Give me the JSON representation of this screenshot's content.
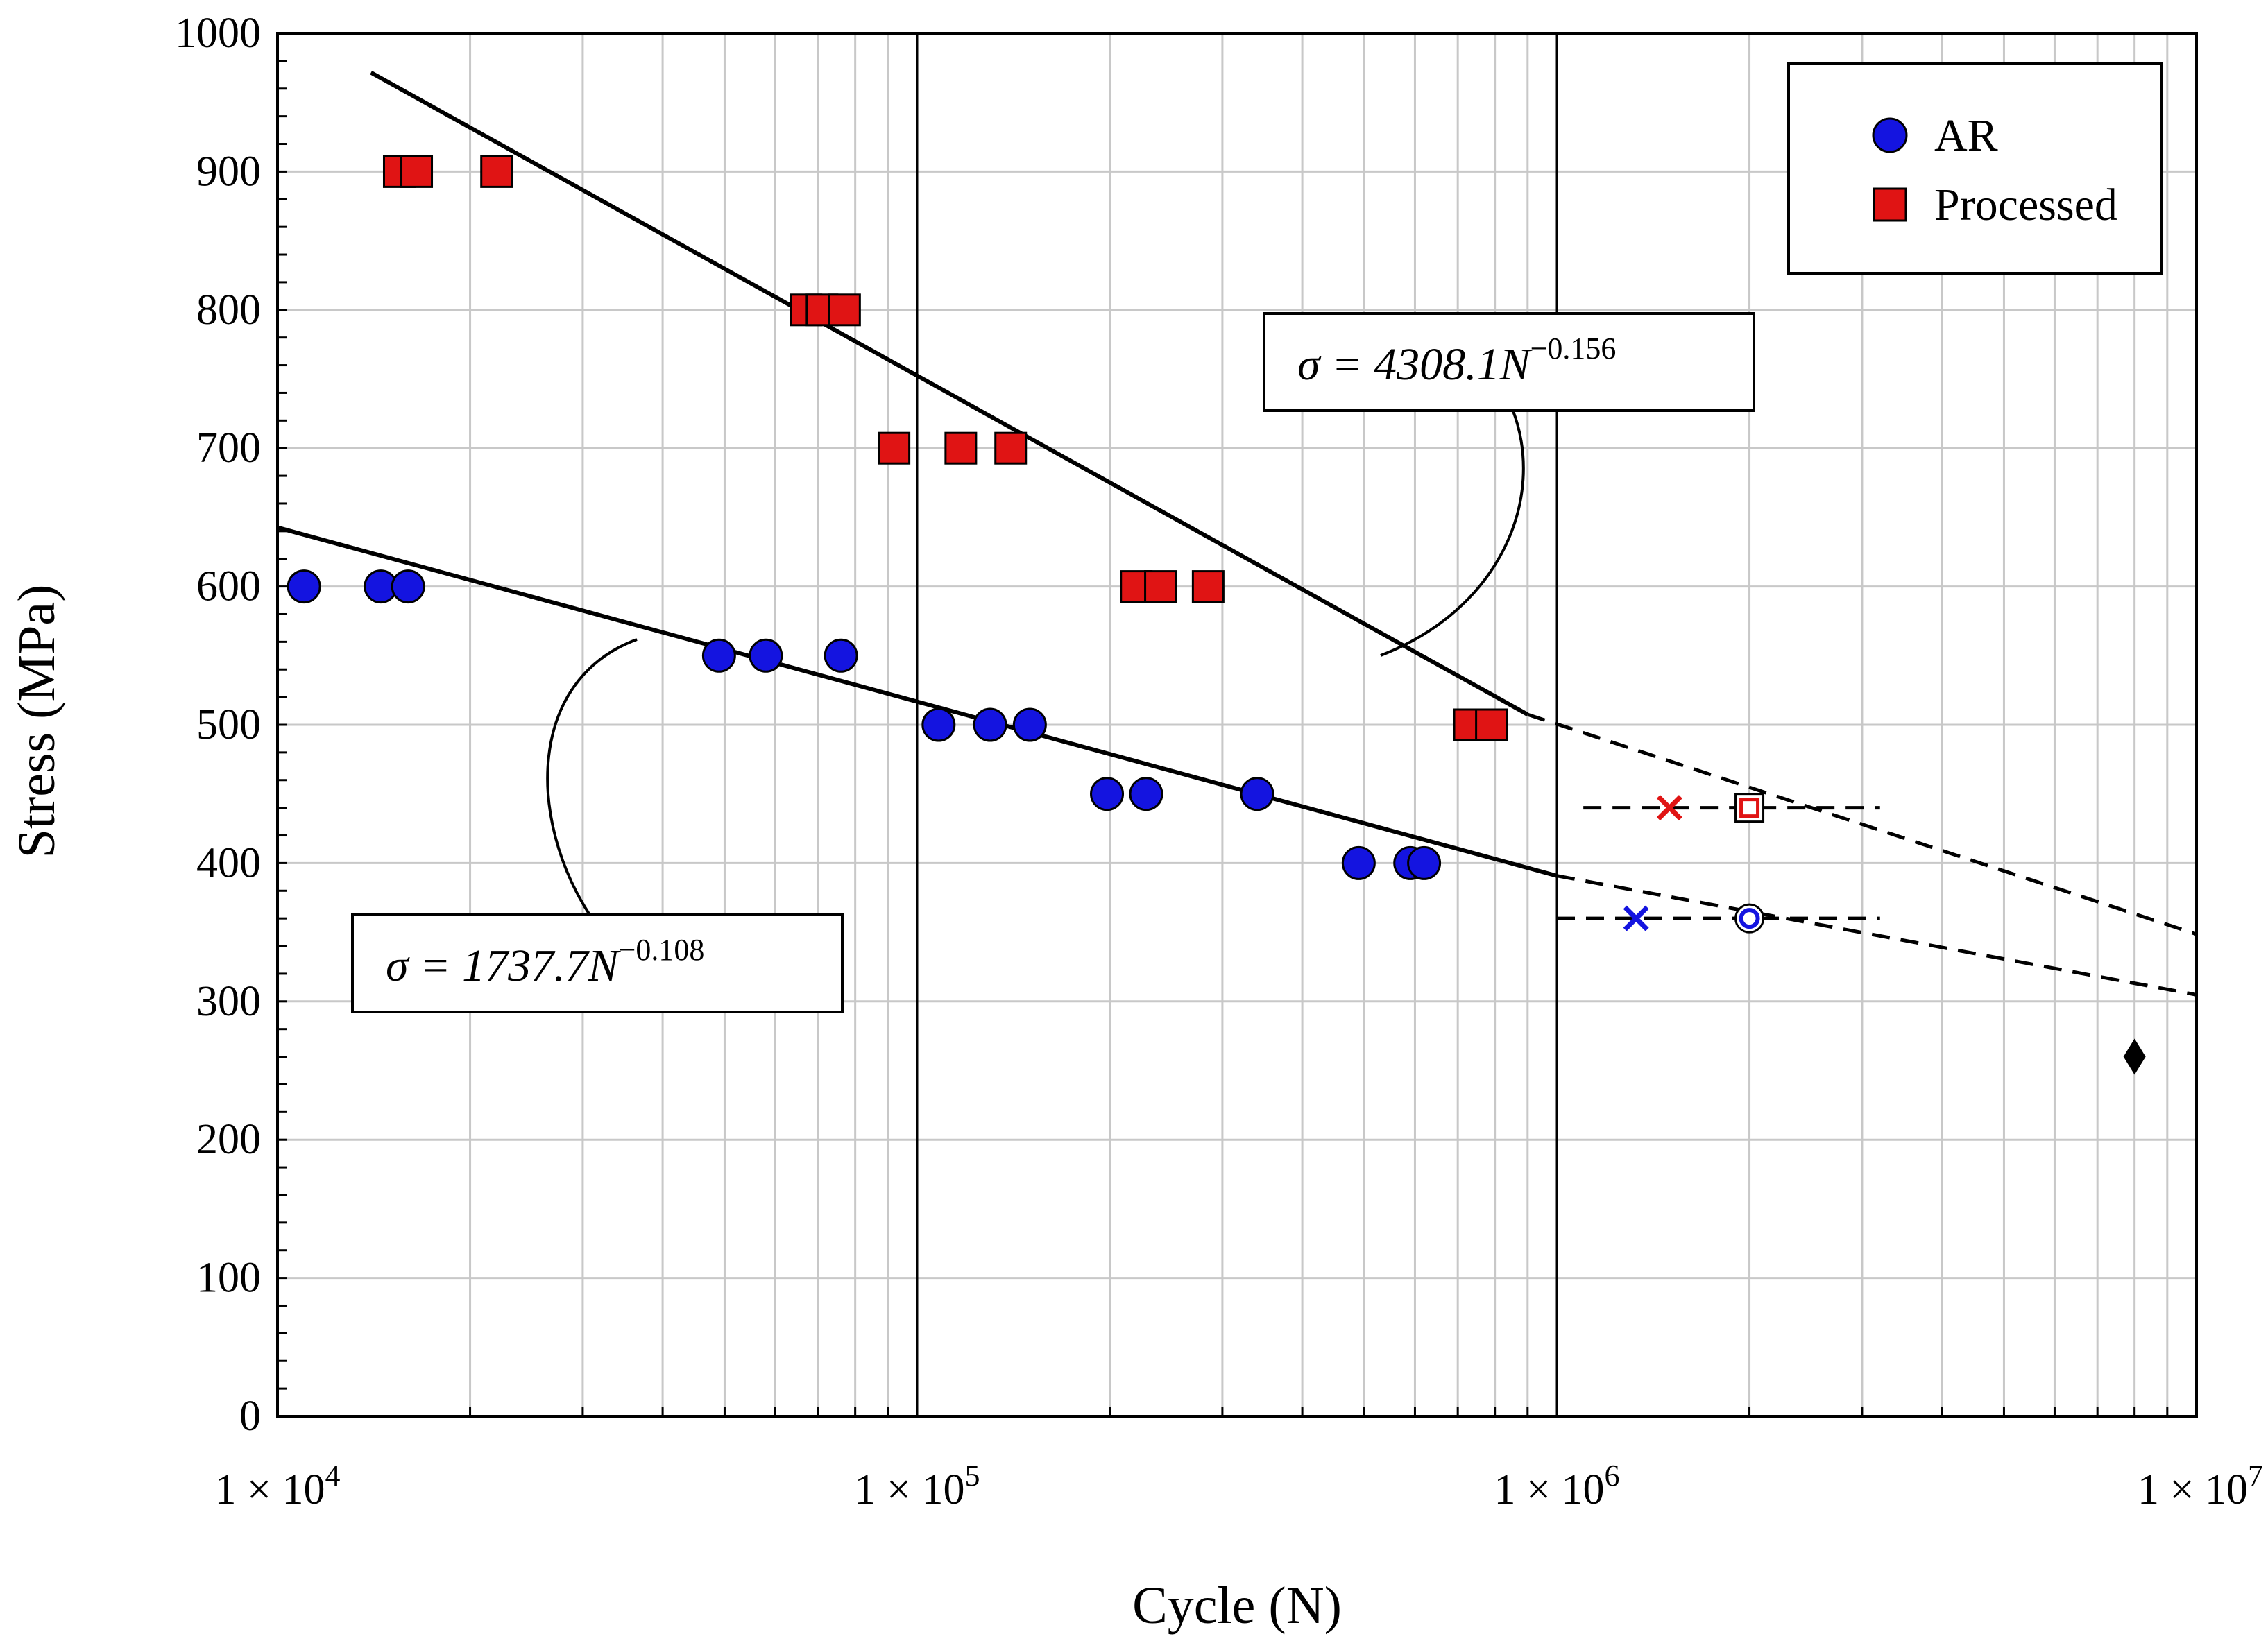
{
  "chart_data": {
    "type": "scatter",
    "title": "",
    "xlabel": "Cycle (N)",
    "ylabel": "Stress (MPa)",
    "xscale": "log",
    "xlim": [
      10000,
      10000000
    ],
    "ylim": [
      0,
      1000
    ],
    "grid": true,
    "x_ticks": [
      {
        "value": 10000,
        "base": "1 × 10",
        "exp": "4"
      },
      {
        "value": 100000,
        "base": "1 × 10",
        "exp": "5"
      },
      {
        "value": 1000000,
        "base": "1 × 10",
        "exp": "6"
      },
      {
        "value": 10000000,
        "base": "1 × 10",
        "exp": "7"
      }
    ],
    "y_ticks": [
      0,
      100,
      200,
      300,
      400,
      500,
      600,
      700,
      800,
      900,
      1000
    ],
    "legend_position": "top-right",
    "colors": {
      "ar": "#1414e0",
      "processed": "#e01414",
      "line": "#000000",
      "grid": "#c8c8c8"
    },
    "series": [
      {
        "name": "AR",
        "marker": "circle",
        "color": "#1414e0",
        "points": [
          [
            11000,
            600
          ],
          [
            14500,
            600
          ],
          [
            16000,
            600
          ],
          [
            49000,
            550
          ],
          [
            58000,
            550
          ],
          [
            76000,
            550
          ],
          [
            108000,
            500
          ],
          [
            130000,
            500
          ],
          [
            150000,
            500
          ],
          [
            198000,
            450
          ],
          [
            228000,
            450
          ],
          [
            340000,
            450
          ],
          [
            490000,
            400
          ],
          [
            590000,
            400
          ],
          [
            620000,
            400
          ]
        ]
      },
      {
        "name": "Processed",
        "marker": "square",
        "color": "#e01414",
        "points": [
          [
            15500,
            900
          ],
          [
            16500,
            900
          ],
          [
            22000,
            900
          ],
          [
            67000,
            800
          ],
          [
            71000,
            800
          ],
          [
            77000,
            800
          ],
          [
            92000,
            700
          ],
          [
            117000,
            700
          ],
          [
            140000,
            700
          ],
          [
            220000,
            600
          ],
          [
            240000,
            600
          ],
          [
            285000,
            600
          ],
          [
            730000,
            500
          ],
          [
            790000,
            500
          ]
        ]
      }
    ],
    "fits": [
      {
        "name": "AR fit",
        "equation": "σ = 1737.7N",
        "exponent": "−0.108",
        "a": 1737.7,
        "b": -0.108,
        "solid_range": [
          10000,
          1000000
        ],
        "dashed_range": [
          1000000,
          10000000
        ]
      },
      {
        "name": "Processed fit",
        "equation": "σ = 4308.1N",
        "exponent": "−0.156",
        "a": 4308.1,
        "b": -0.156,
        "solid_range": [
          14000,
          900000
        ],
        "dashed_range": [
          900000,
          10000000
        ]
      }
    ],
    "runouts": [
      {
        "series": "Processed",
        "x": 2000000,
        "y": 440,
        "marker": "open-square",
        "color": "#e01414"
      },
      {
        "series": "AR",
        "x": 2000000,
        "y": 360,
        "marker": "open-circle",
        "color": "#1414e0"
      }
    ],
    "predicted": [
      {
        "series": "Processed",
        "x": 1500000,
        "y": 440,
        "marker": "x",
        "color": "#e01414"
      },
      {
        "series": "AR",
        "x": 1330000,
        "y": 360,
        "marker": "x",
        "color": "#1414e0"
      }
    ],
    "threshold_lines": [
      {
        "series": "Processed",
        "y": 440,
        "x_range": [
          1100000,
          3200000
        ]
      },
      {
        "series": "AR",
        "y": 360,
        "x_range": [
          1000000,
          3200000
        ]
      }
    ],
    "intersection": {
      "x": 8000000,
      "y": 260,
      "marker": "diamond",
      "color": "#000000"
    }
  },
  "legend": {
    "items": [
      {
        "label": "AR",
        "marker": "circle",
        "color": "#1414e0"
      },
      {
        "label": "Processed",
        "marker": "square",
        "color": "#e01414"
      }
    ]
  }
}
